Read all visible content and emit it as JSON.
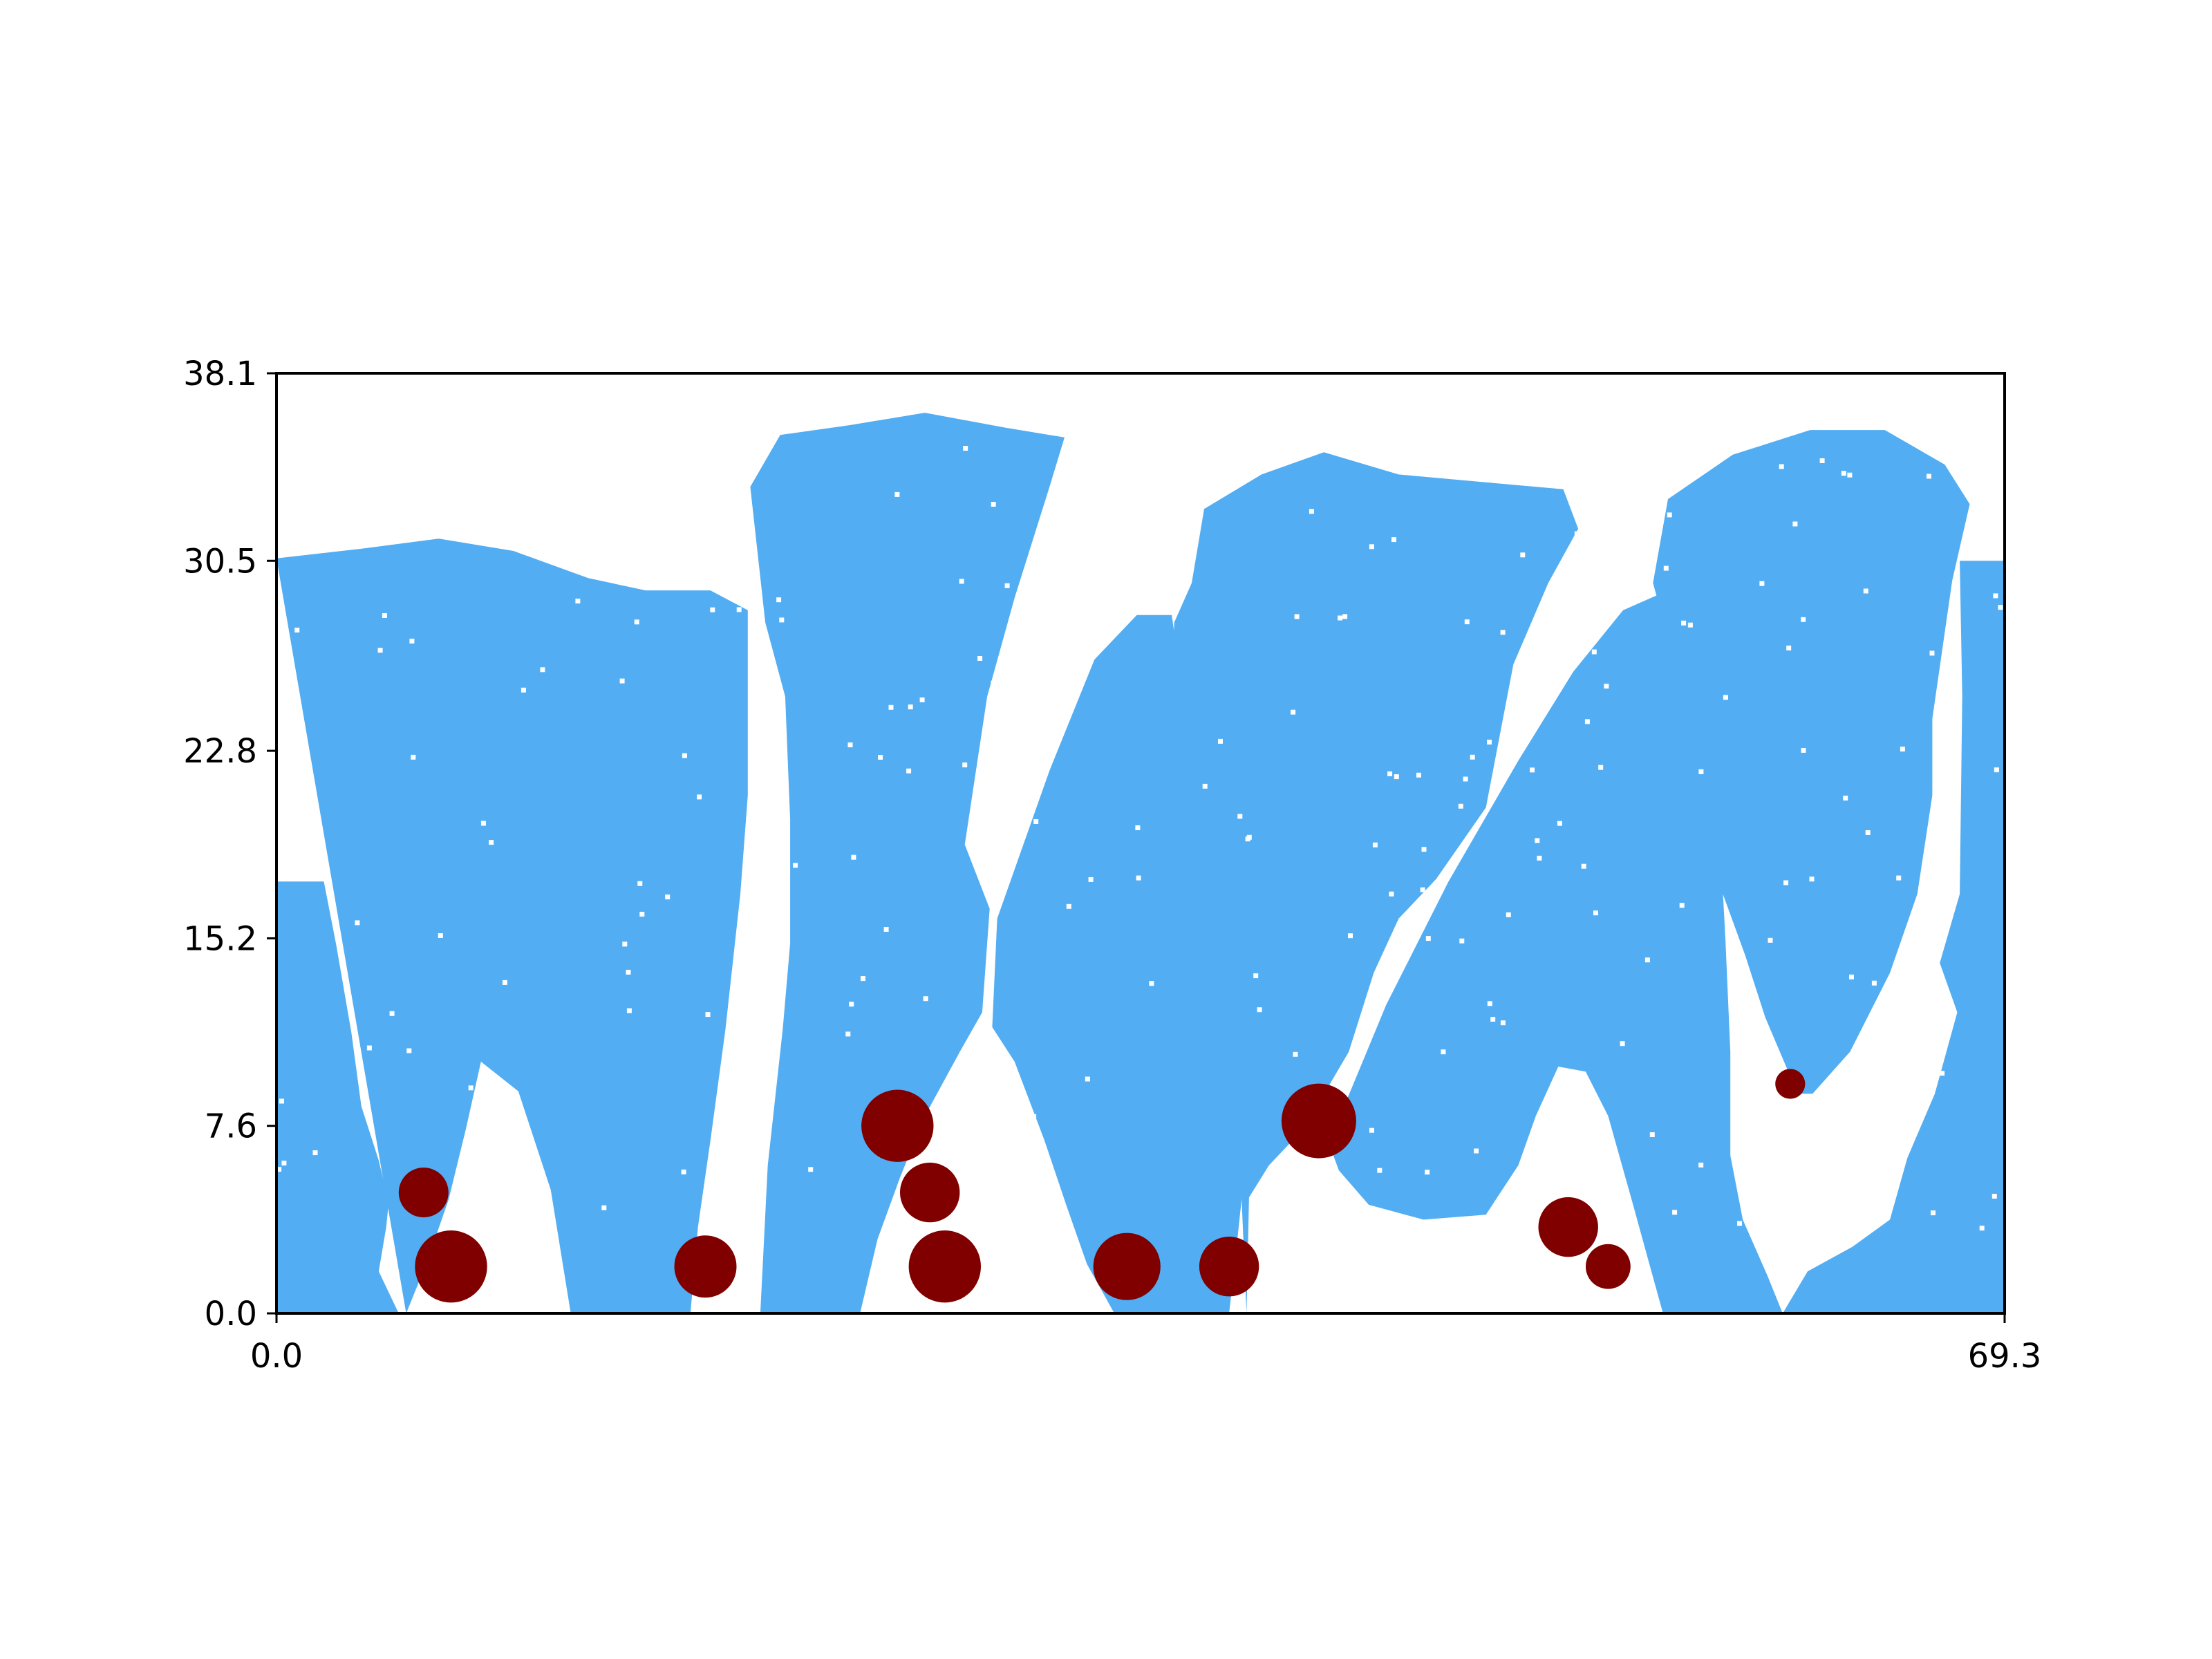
{
  "chart_data": {
    "type": "scatter",
    "xlim": [
      0.0,
      69.3
    ],
    "ylim": [
      0.0,
      38.1
    ],
    "x_ticks": [
      "0.0",
      "69.3"
    ],
    "y_ticks": [
      "0.0",
      "7.6",
      "15.2",
      "22.8",
      "30.5",
      "38.1"
    ],
    "grid": false,
    "background_field": {
      "description_color": "#52ADF2",
      "blobs": [
        {
          "top": [
            [
              0.0,
              30.6
            ],
            [
              3.5,
              31.0
            ],
            [
              6.5,
              31.4
            ],
            [
              9.5,
              30.9
            ],
            [
              12.5,
              29.8
            ],
            [
              14.8,
              29.3
            ],
            [
              17.4,
              29.3
            ],
            [
              18.9,
              28.5
            ]
          ],
          "right_bottom": [
            [
              18.9,
              21.0
            ],
            [
              18.6,
              17.0
            ],
            [
              18.0,
              11.5
            ],
            [
              17.4,
              7.0
            ],
            [
              16.9,
              3.5
            ],
            [
              16.6,
              0.0
            ]
          ],
          "left_bottom": [
            [
              11.8,
              0.0
            ],
            [
              11.0,
              5.0
            ],
            [
              9.7,
              9.0
            ],
            [
              8.2,
              10.2
            ],
            [
              7.6,
              7.5
            ],
            [
              6.9,
              4.6
            ],
            [
              6.0,
              2.0
            ],
            [
              5.2,
              0.0
            ]
          ]
        },
        {
          "top": [
            [
              19.0,
              33.5
            ],
            [
              20.2,
              35.6
            ],
            [
              23.0,
              36.0
            ],
            [
              26.0,
              36.5
            ],
            [
              29.2,
              35.9
            ],
            [
              31.6,
              35.5
            ],
            [
              31.0,
              33.5
            ],
            [
              29.6,
              29.0
            ],
            [
              28.5,
              25.0
            ],
            [
              27.6,
              19.0
            ]
          ],
          "right_bottom": [
            [
              28.6,
              16.4
            ],
            [
              28.3,
              12.2
            ],
            [
              27.4,
              10.6
            ],
            [
              26.0,
              8.0
            ],
            [
              25.0,
              5.5
            ],
            [
              24.1,
              3.0
            ],
            [
              23.4,
              0.0
            ]
          ],
          "left_bottom": [
            [
              19.4,
              0.0
            ],
            [
              19.7,
              6.0
            ],
            [
              20.3,
              11.5
            ],
            [
              20.6,
              15.0
            ],
            [
              20.6,
              20.0
            ],
            [
              20.4,
              25.0
            ],
            [
              19.6,
              28.0
            ]
          ]
        },
        {
          "top": [
            [
              28.9,
              16.0
            ],
            [
              31.0,
              22.0
            ],
            [
              32.8,
              26.5
            ],
            [
              34.5,
              28.3
            ],
            [
              35.9,
              28.3
            ],
            [
              36.6,
              23.4
            ],
            [
              37.3,
              17.0
            ],
            [
              38.2,
              11.4
            ],
            [
              38.9,
              8.2
            ]
          ],
          "right_bottom": [
            [
              38.9,
              6.5
            ],
            [
              38.5,
              2.7
            ],
            [
              38.2,
              0.0
            ]
          ],
          "left_bottom": [
            [
              33.6,
              0.0
            ],
            [
              32.5,
              2.0
            ],
            [
              31.7,
              4.3
            ],
            [
              30.8,
              7.0
            ],
            [
              29.6,
              10.2
            ],
            [
              28.7,
              11.6
            ]
          ]
        },
        {
          "top": [
            [
              36.7,
              29.6
            ],
            [
              37.2,
              32.6
            ],
            [
              39.5,
              34.0
            ],
            [
              42.0,
              34.9
            ],
            [
              45.0,
              34.0
            ],
            [
              48.3,
              33.7
            ],
            [
              51.6,
              33.4
            ],
            [
              52.2,
              31.8
            ],
            [
              51.0,
              29.6
            ],
            [
              49.6,
              26.3
            ],
            [
              48.5,
              20.5
            ],
            [
              46.5,
              17.6
            ],
            [
              45.0,
              16.0
            ]
          ],
          "right_bottom": [
            [
              44.0,
              13.8
            ],
            [
              43.0,
              10.6
            ],
            [
              41.2,
              7.5
            ],
            [
              39.8,
              6.0
            ],
            [
              39.0,
              4.7
            ],
            [
              38.9,
              0.0
            ]
          ],
          "left_bottom": [
            [
              38.9,
              0.0
            ],
            [
              38.7,
              4.7
            ],
            [
              38.1,
              7.2
            ],
            [
              37.6,
              11.8
            ],
            [
              36.8,
              17.4
            ],
            [
              36.3,
              21.6
            ],
            [
              35.9,
              25.0
            ],
            [
              36.0,
              28.0
            ]
          ]
        },
        {
          "top": [
            [
              42.2,
              6.9
            ],
            [
              44.5,
              12.5
            ],
            [
              47.0,
              17.5
            ],
            [
              49.8,
              22.4
            ],
            [
              52.0,
              26.0
            ],
            [
              54.0,
              28.5
            ],
            [
              55.8,
              29.3
            ],
            [
              56.9,
              27.8
            ],
            [
              57.5,
              23.3
            ],
            [
              57.9,
              19.0
            ],
            [
              58.1,
              15.2
            ]
          ],
          "right_bottom": [
            [
              58.3,
              10.6
            ],
            [
              58.3,
              6.4
            ],
            [
              58.8,
              3.8
            ],
            [
              59.8,
              1.5
            ],
            [
              60.4,
              0.0
            ]
          ],
          "left_bottom": [
            [
              55.6,
              0.0
            ],
            [
              55.0,
              2.2
            ],
            [
              54.4,
              4.4
            ],
            [
              53.4,
              8.0
            ],
            [
              52.5,
              9.8
            ],
            [
              51.4,
              10.0
            ],
            [
              50.5,
              8.0
            ],
            [
              49.8,
              6.0
            ],
            [
              48.5,
              4.0
            ],
            [
              46.0,
              3.8
            ],
            [
              43.8,
              4.4
            ],
            [
              42.6,
              5.8
            ]
          ]
        },
        {
          "top": [
            [
              55.2,
              29.6
            ],
            [
              55.8,
              33.0
            ],
            [
              58.4,
              34.8
            ],
            [
              61.5,
              35.8
            ],
            [
              64.5,
              35.8
            ],
            [
              66.9,
              34.4
            ],
            [
              67.9,
              32.8
            ],
            [
              67.2,
              29.7
            ],
            [
              66.4,
              24.1
            ]
          ],
          "right_bottom": [
            [
              66.4,
              21.0
            ],
            [
              65.8,
              17.0
            ],
            [
              64.7,
              13.8
            ],
            [
              63.1,
              10.6
            ],
            [
              61.6,
              8.9
            ]
          ],
          "left_bottom": [
            [
              61.0,
              8.9
            ],
            [
              59.7,
              12.0
            ],
            [
              58.9,
              14.5
            ],
            [
              58.0,
              17.0
            ],
            [
              57.5,
              21.5
            ],
            [
              56.4,
              25.5
            ],
            [
              55.8,
              27.4
            ]
          ]
        },
        {
          "top": [
            [
              67.5,
              30.5
            ],
            [
              69.3,
              30.5
            ]
          ],
          "right_bottom": [
            [
              69.3,
              10.1
            ],
            [
              69.3,
              0.0
            ]
          ],
          "left_bottom": [
            [
              60.4,
              0.0
            ],
            [
              61.4,
              1.7
            ],
            [
              63.2,
              2.7
            ],
            [
              64.7,
              3.8
            ],
            [
              65.4,
              6.3
            ],
            [
              66.5,
              8.9
            ],
            [
              67.4,
              12.2
            ],
            [
              66.7,
              14.2
            ],
            [
              67.5,
              17.0
            ],
            [
              67.6,
              25.0
            ]
          ]
        },
        {
          "top": [
            [
              0.0,
              17.5
            ],
            [
              1.9,
              17.5
            ],
            [
              2.4,
              14.9
            ],
            [
              3.0,
              11.4
            ],
            [
              3.4,
              8.4
            ],
            [
              4.1,
              6.2
            ],
            [
              4.5,
              4.5
            ],
            [
              4.4,
              3.5
            ],
            [
              4.1,
              1.7
            ],
            [
              4.9,
              0.0
            ]
          ],
          "right_bottom": [
            [
              4.9,
              0.0
            ],
            [
              0.0,
              0.0
            ]
          ],
          "left_bottom": [
            [
              0.0,
              0.0
            ],
            [
              0.0,
              17.5
            ]
          ]
        },
        {
          "top": [
            [
              0.0,
              15.0
            ],
            [
              0.0,
              15.2
            ]
          ],
          "right_bottom": [
            [
              0.0,
              15.2
            ],
            [
              0.0,
              15.0
            ]
          ],
          "left_bottom": [
            [
              0.0,
              15.0
            ],
            [
              0.0,
              15.0
            ]
          ]
        }
      ]
    },
    "series": [
      {
        "marker": "circle",
        "color": "#800000",
        "points": [
          {
            "x": 5.9,
            "y": 4.9,
            "size": 1.0
          },
          {
            "x": 7.0,
            "y": 1.9,
            "size": 1.45
          },
          {
            "x": 17.2,
            "y": 1.9,
            "size": 1.25
          },
          {
            "x": 24.9,
            "y": 7.6,
            "size": 1.45
          },
          {
            "x": 26.2,
            "y": 4.9,
            "size": 1.2
          },
          {
            "x": 26.8,
            "y": 1.9,
            "size": 1.45
          },
          {
            "x": 34.1,
            "y": 1.9,
            "size": 1.35
          },
          {
            "x": 38.2,
            "y": 1.9,
            "size": 1.2
          },
          {
            "x": 41.8,
            "y": 7.8,
            "size": 1.5
          },
          {
            "x": 51.8,
            "y": 3.5,
            "size": 1.2
          },
          {
            "x": 53.4,
            "y": 1.9,
            "size": 0.9
          },
          {
            "x": 60.7,
            "y": 9.3,
            "size": 0.6
          }
        ]
      }
    ]
  }
}
